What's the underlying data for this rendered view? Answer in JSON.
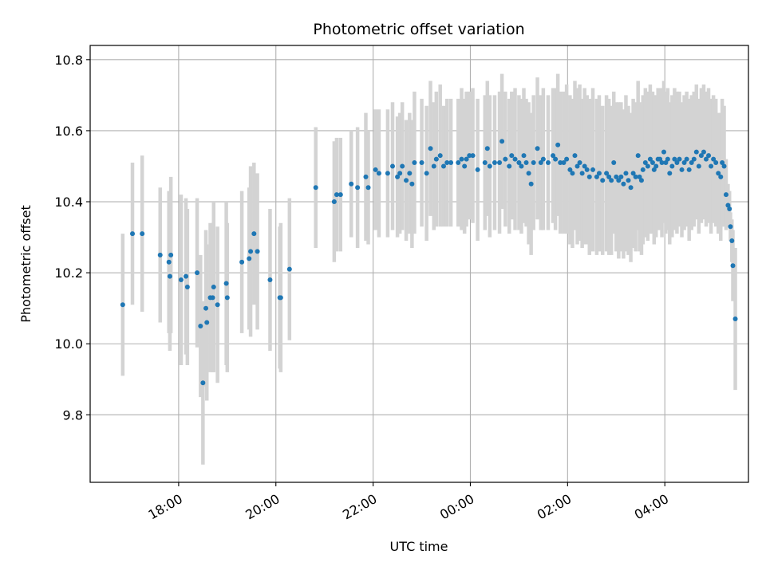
{
  "chart_data": {
    "type": "scatter",
    "title": "Photometric offset variation",
    "xlabel": "UTC time",
    "ylabel": "Photometric offset",
    "x_unit": "hours",
    "xlim": [
      16.18,
      29.72
    ],
    "ylim": [
      9.61,
      10.84
    ],
    "x_ticks": [
      {
        "value": 18,
        "label": "18:00"
      },
      {
        "value": 20,
        "label": "20:00"
      },
      {
        "value": 22,
        "label": "22:00"
      },
      {
        "value": 24,
        "label": "00:00"
      },
      {
        "value": 26,
        "label": "02:00"
      },
      {
        "value": 28,
        "label": "04:00"
      }
    ],
    "y_ticks": [
      {
        "value": 9.8,
        "label": "9.8"
      },
      {
        "value": 10.0,
        "label": "10.0"
      },
      {
        "value": 10.2,
        "label": "10.2"
      },
      {
        "value": 10.4,
        "label": "10.4"
      },
      {
        "value": 10.6,
        "label": "10.6"
      },
      {
        "value": 10.8,
        "label": "10.8"
      }
    ],
    "grid": true,
    "marker_color": "#1f77b4",
    "errorbar_color": "#d3d3d3",
    "points": [
      [
        16.85,
        10.11,
        0.2
      ],
      [
        17.05,
        10.31,
        0.2
      ],
      [
        17.25,
        10.31,
        0.22
      ],
      [
        17.62,
        10.25,
        0.19
      ],
      [
        17.8,
        10.23,
        0.2
      ],
      [
        17.82,
        10.19,
        0.21
      ],
      [
        17.84,
        10.25,
        0.22
      ],
      [
        18.05,
        10.18,
        0.24
      ],
      [
        18.15,
        10.19,
        0.22
      ],
      [
        18.18,
        10.16,
        0.22
      ],
      [
        18.38,
        10.2,
        0.21
      ],
      [
        18.45,
        10.05,
        0.2
      ],
      [
        18.5,
        9.89,
        0.23
      ],
      [
        18.56,
        10.1,
        0.22
      ],
      [
        18.58,
        10.06,
        0.22
      ],
      [
        18.65,
        10.13,
        0.21
      ],
      [
        18.7,
        10.13,
        0.21
      ],
      [
        18.72,
        10.16,
        0.24
      ],
      [
        18.8,
        10.11,
        0.22
      ],
      [
        18.98,
        10.17,
        0.23
      ],
      [
        19.0,
        10.13,
        0.21
      ],
      [
        19.3,
        10.23,
        0.2
      ],
      [
        19.45,
        10.24,
        0.2
      ],
      [
        19.48,
        10.26,
        0.24
      ],
      [
        19.55,
        10.31,
        0.2
      ],
      [
        19.62,
        10.26,
        0.22
      ],
      [
        19.88,
        10.18,
        0.2
      ],
      [
        20.08,
        10.13,
        0.2
      ],
      [
        20.1,
        10.13,
        0.21
      ],
      [
        20.28,
        10.21,
        0.2
      ],
      [
        20.82,
        10.44,
        0.17
      ],
      [
        21.2,
        10.4,
        0.17
      ],
      [
        21.25,
        10.42,
        0.16
      ],
      [
        21.33,
        10.42,
        0.16
      ],
      [
        21.55,
        10.45,
        0.15
      ],
      [
        21.68,
        10.44,
        0.17
      ],
      [
        21.85,
        10.47,
        0.18
      ],
      [
        21.9,
        10.44,
        0.16
      ],
      [
        22.05,
        10.49,
        0.17
      ],
      [
        22.12,
        10.48,
        0.18
      ],
      [
        22.3,
        10.48,
        0.18
      ],
      [
        22.4,
        10.5,
        0.18
      ],
      [
        22.5,
        10.47,
        0.17
      ],
      [
        22.55,
        10.48,
        0.17
      ],
      [
        22.6,
        10.5,
        0.18
      ],
      [
        22.68,
        10.46,
        0.17
      ],
      [
        22.75,
        10.48,
        0.17
      ],
      [
        22.8,
        10.45,
        0.18
      ],
      [
        22.85,
        10.51,
        0.2
      ],
      [
        23.0,
        10.51,
        0.18
      ],
      [
        23.1,
        10.48,
        0.19
      ],
      [
        23.18,
        10.55,
        0.19
      ],
      [
        23.25,
        10.5,
        0.18
      ],
      [
        23.3,
        10.52,
        0.19
      ],
      [
        23.38,
        10.53,
        0.2
      ],
      [
        23.45,
        10.5,
        0.17
      ],
      [
        23.52,
        10.51,
        0.18
      ],
      [
        23.6,
        10.51,
        0.18
      ],
      [
        23.75,
        10.51,
        0.18
      ],
      [
        23.82,
        10.52,
        0.2
      ],
      [
        23.88,
        10.5,
        0.19
      ],
      [
        23.92,
        10.52,
        0.19
      ],
      [
        23.98,
        10.53,
        0.18
      ],
      [
        24.05,
        10.53,
        0.19
      ],
      [
        24.15,
        10.49,
        0.2
      ],
      [
        24.3,
        10.51,
        0.19
      ],
      [
        24.35,
        10.55,
        0.19
      ],
      [
        24.4,
        10.5,
        0.2
      ],
      [
        24.5,
        10.51,
        0.19
      ],
      [
        24.6,
        10.51,
        0.2
      ],
      [
        24.65,
        10.57,
        0.19
      ],
      [
        24.72,
        10.52,
        0.19
      ],
      [
        24.8,
        10.5,
        0.19
      ],
      [
        24.85,
        10.53,
        0.18
      ],
      [
        24.92,
        10.52,
        0.2
      ],
      [
        25.0,
        10.51,
        0.19
      ],
      [
        25.05,
        10.5,
        0.19
      ],
      [
        25.1,
        10.53,
        0.19
      ],
      [
        25.15,
        10.51,
        0.18
      ],
      [
        25.2,
        10.48,
        0.2
      ],
      [
        25.25,
        10.45,
        0.2
      ],
      [
        25.3,
        10.51,
        0.19
      ],
      [
        25.38,
        10.55,
        0.2
      ],
      [
        25.45,
        10.51,
        0.19
      ],
      [
        25.5,
        10.52,
        0.2
      ],
      [
        25.6,
        10.51,
        0.19
      ],
      [
        25.7,
        10.53,
        0.19
      ],
      [
        25.75,
        10.52,
        0.2
      ],
      [
        25.8,
        10.56,
        0.2
      ],
      [
        25.85,
        10.51,
        0.2
      ],
      [
        25.92,
        10.51,
        0.2
      ],
      [
        25.98,
        10.52,
        0.21
      ],
      [
        26.05,
        10.49,
        0.21
      ],
      [
        26.1,
        10.48,
        0.21
      ],
      [
        26.15,
        10.53,
        0.21
      ],
      [
        26.2,
        10.5,
        0.22
      ],
      [
        26.25,
        10.51,
        0.22
      ],
      [
        26.3,
        10.48,
        0.21
      ],
      [
        26.35,
        10.5,
        0.22
      ],
      [
        26.4,
        10.49,
        0.21
      ],
      [
        26.45,
        10.47,
        0.22
      ],
      [
        26.52,
        10.49,
        0.23
      ],
      [
        26.6,
        10.47,
        0.22
      ],
      [
        26.65,
        10.48,
        0.22
      ],
      [
        26.72,
        10.46,
        0.21
      ],
      [
        26.8,
        10.48,
        0.22
      ],
      [
        26.85,
        10.47,
        0.22
      ],
      [
        26.9,
        10.46,
        0.21
      ],
      [
        26.95,
        10.51,
        0.2
      ],
      [
        27.0,
        10.47,
        0.21
      ],
      [
        27.05,
        10.46,
        0.22
      ],
      [
        27.1,
        10.47,
        0.21
      ],
      [
        27.15,
        10.45,
        0.21
      ],
      [
        27.2,
        10.48,
        0.22
      ],
      [
        27.25,
        10.46,
        0.21
      ],
      [
        27.3,
        10.44,
        0.21
      ],
      [
        27.35,
        10.48,
        0.21
      ],
      [
        27.4,
        10.47,
        0.21
      ],
      [
        27.45,
        10.53,
        0.21
      ],
      [
        27.48,
        10.47,
        0.21
      ],
      [
        27.52,
        10.46,
        0.21
      ],
      [
        27.55,
        10.49,
        0.21
      ],
      [
        27.6,
        10.51,
        0.21
      ],
      [
        27.65,
        10.5,
        0.21
      ],
      [
        27.7,
        10.52,
        0.21
      ],
      [
        27.75,
        10.51,
        0.2
      ],
      [
        27.78,
        10.49,
        0.21
      ],
      [
        27.82,
        10.5,
        0.2
      ],
      [
        27.86,
        10.52,
        0.2
      ],
      [
        27.9,
        10.52,
        0.2
      ],
      [
        27.94,
        10.51,
        0.21
      ],
      [
        27.98,
        10.54,
        0.2
      ],
      [
        28.02,
        10.51,
        0.2
      ],
      [
        28.06,
        10.52,
        0.2
      ],
      [
        28.1,
        10.48,
        0.2
      ],
      [
        28.15,
        10.5,
        0.2
      ],
      [
        28.2,
        10.52,
        0.2
      ],
      [
        28.25,
        10.51,
        0.2
      ],
      [
        28.3,
        10.52,
        0.19
      ],
      [
        28.35,
        10.49,
        0.19
      ],
      [
        28.4,
        10.51,
        0.19
      ],
      [
        28.45,
        10.52,
        0.19
      ],
      [
        28.5,
        10.49,
        0.2
      ],
      [
        28.55,
        10.51,
        0.19
      ],
      [
        28.6,
        10.52,
        0.19
      ],
      [
        28.65,
        10.54,
        0.19
      ],
      [
        28.7,
        10.5,
        0.19
      ],
      [
        28.75,
        10.53,
        0.19
      ],
      [
        28.8,
        10.54,
        0.19
      ],
      [
        28.85,
        10.52,
        0.19
      ],
      [
        28.9,
        10.53,
        0.19
      ],
      [
        28.95,
        10.5,
        0.19
      ],
      [
        29.0,
        10.52,
        0.18
      ],
      [
        29.05,
        10.51,
        0.18
      ],
      [
        29.1,
        10.48,
        0.17
      ],
      [
        29.15,
        10.47,
        0.18
      ],
      [
        29.18,
        10.51,
        0.18
      ],
      [
        29.22,
        10.5,
        0.17
      ],
      [
        29.26,
        10.42,
        0.1
      ],
      [
        29.3,
        10.39,
        0.06
      ],
      [
        29.33,
        10.38,
        0.05
      ],
      [
        29.35,
        10.33,
        0.04
      ],
      [
        29.38,
        10.29,
        0.06
      ],
      [
        29.4,
        10.22,
        0.1
      ],
      [
        29.45,
        10.07,
        0.2
      ]
    ]
  }
}
